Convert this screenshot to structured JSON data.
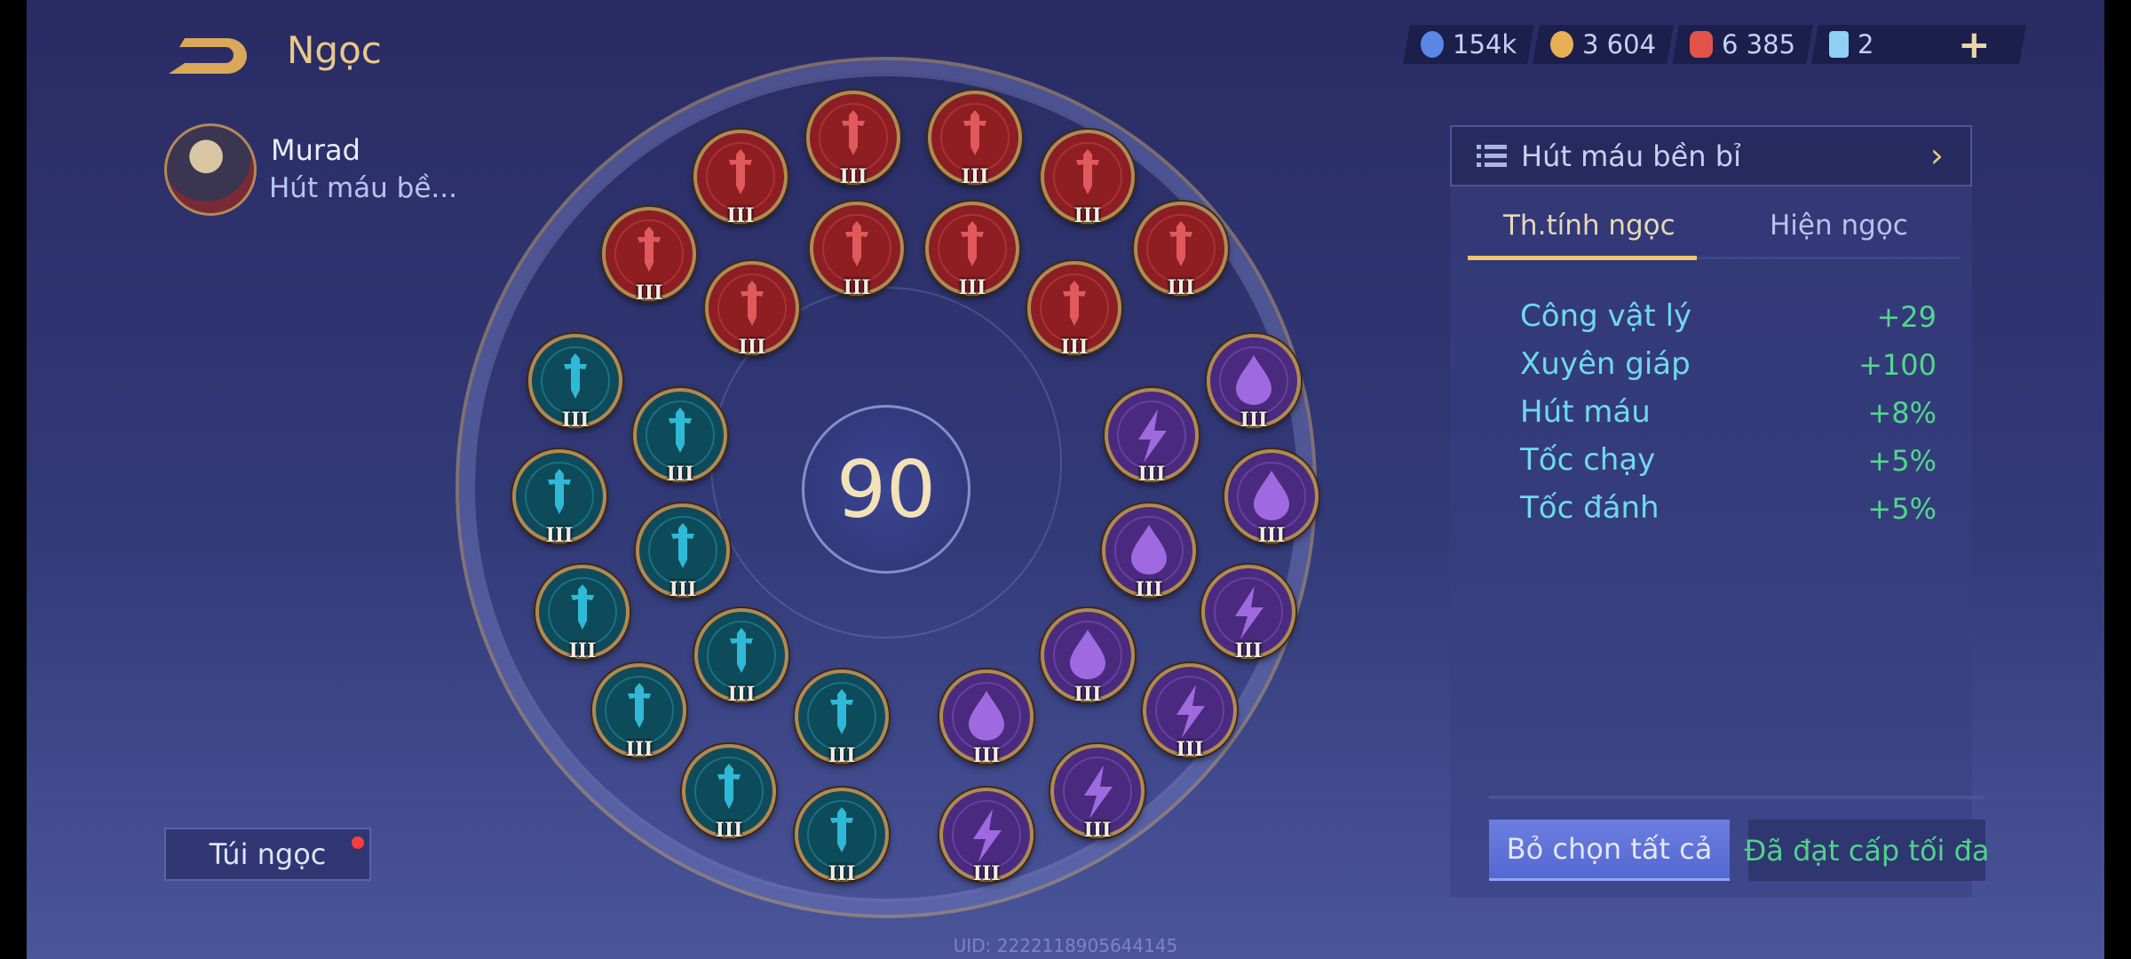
{
  "header": {
    "title": "Ngọc",
    "back_icon": "back-arrow-icon"
  },
  "hero": {
    "name": "Murad",
    "preset_short": "Hút máu bề..."
  },
  "currencies": [
    {
      "icon": "blue-gem-coin-icon",
      "color": "#5a86e6",
      "value": "154k"
    },
    {
      "icon": "gold-coin-icon",
      "color": "#e8b054",
      "value": "3 604"
    },
    {
      "icon": "red-crystal-icon",
      "color": "#e0544a",
      "value": "6 385"
    },
    {
      "icon": "blue-card-icon",
      "color": "#8fd0f5",
      "value": "2"
    }
  ],
  "add_label": "+",
  "center_level": "90",
  "gems": [
    {
      "color": "red",
      "icon": "sword",
      "level": "III"
    },
    {
      "color": "red",
      "icon": "sword",
      "level": "III"
    },
    {
      "color": "red",
      "icon": "sword",
      "level": "III"
    },
    {
      "color": "red",
      "icon": "sword",
      "level": "III"
    },
    {
      "color": "red",
      "icon": "sword",
      "level": "III"
    },
    {
      "color": "red",
      "icon": "sword",
      "level": "III"
    },
    {
      "color": "red",
      "icon": "sword",
      "level": "III"
    },
    {
      "color": "red",
      "icon": "sword",
      "level": "III"
    },
    {
      "color": "red",
      "icon": "sword",
      "level": "III"
    },
    {
      "color": "red",
      "icon": "sword",
      "level": "III"
    },
    {
      "color": "teal",
      "icon": "sword",
      "level": "III"
    },
    {
      "color": "teal",
      "icon": "sword",
      "level": "III"
    },
    {
      "color": "teal",
      "icon": "sword",
      "level": "III"
    },
    {
      "color": "teal",
      "icon": "sword",
      "level": "III"
    },
    {
      "color": "teal",
      "icon": "sword",
      "level": "III"
    },
    {
      "color": "teal",
      "icon": "sword",
      "level": "III"
    },
    {
      "color": "teal",
      "icon": "sword",
      "level": "III"
    },
    {
      "color": "teal",
      "icon": "sword",
      "level": "III"
    },
    {
      "color": "teal",
      "icon": "sword",
      "level": "III"
    },
    {
      "color": "teal",
      "icon": "sword",
      "level": "III"
    },
    {
      "color": "purple",
      "icon": "drop",
      "level": "III"
    },
    {
      "color": "purple",
      "icon": "lightning",
      "level": "III"
    },
    {
      "color": "purple",
      "icon": "drop",
      "level": "III"
    },
    {
      "color": "purple",
      "icon": "drop",
      "level": "III"
    },
    {
      "color": "purple",
      "icon": "lightning",
      "level": "III"
    },
    {
      "color": "purple",
      "icon": "drop",
      "level": "III"
    },
    {
      "color": "purple",
      "icon": "lightning",
      "level": "III"
    },
    {
      "color": "purple",
      "icon": "drop",
      "level": "III"
    },
    {
      "color": "purple",
      "icon": "lightning",
      "level": "III"
    },
    {
      "color": "purple",
      "icon": "lightning",
      "level": "III"
    }
  ],
  "bag_label": "Túi ngọc",
  "uid": "UID: 2222118905644145",
  "panel": {
    "preset_name": "Hút máu bền bỉ",
    "tabs": [
      {
        "label": "Th.tính ngọc",
        "active": true
      },
      {
        "label": "Hiện ngọc",
        "active": false
      }
    ],
    "stats": [
      {
        "label": "Công vật lý",
        "value": "+29"
      },
      {
        "label": "Xuyên giáp",
        "value": "+100"
      },
      {
        "label": "Hút máu",
        "value": "+8%"
      },
      {
        "label": "Tốc chạy",
        "value": "+5%"
      },
      {
        "label": "Tốc đánh",
        "value": "+5%"
      }
    ],
    "deselect_all": "Bỏ chọn tất cả",
    "max_level": "Đã đạt cấp tối đa"
  }
}
